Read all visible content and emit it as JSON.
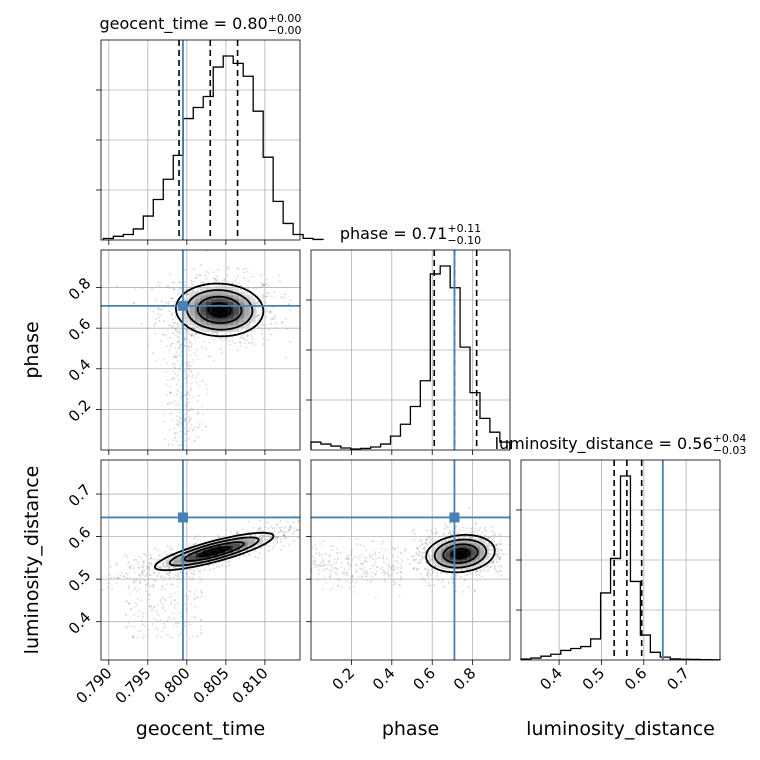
{
  "chart_data": {
    "type": "corner",
    "parameters": [
      {
        "name": "geocent_time",
        "axis_label": "geocent_time",
        "range": [
          0.789,
          0.8145
        ],
        "ticks": [
          0.79,
          0.795,
          0.8,
          0.805,
          0.81
        ],
        "tick_labels": [
          "0.790",
          "0.795",
          "0.800",
          "0.805",
          "0.810"
        ],
        "truth": 0.7995,
        "quantiles": [
          0.799,
          0.803,
          0.8065
        ],
        "title": {
          "main": "geocent_time = 0.80",
          "sup": "+0.00",
          "sub": "−0.00"
        },
        "histogram": {
          "edges_start": 0.7893,
          "bin_width": 0.00128,
          "counts": [
            0.008,
            0.02,
            0.03,
            0.06,
            0.13,
            0.22,
            0.33,
            0.46,
            0.66,
            0.72,
            0.78,
            0.94,
            1.0,
            0.96,
            0.89,
            0.7,
            0.45,
            0.21,
            0.09,
            0.03,
            0.009,
            0.003
          ]
        }
      },
      {
        "name": "phase",
        "axis_label": "phase",
        "range": [
          0.0,
          0.985
        ],
        "ticks": [
          0.2,
          0.4,
          0.6,
          0.8
        ],
        "tick_labels": [
          "0.2",
          "0.4",
          "0.6",
          "0.8"
        ],
        "truth": 0.71,
        "quantiles": [
          0.61,
          0.71,
          0.82
        ],
        "title": {
          "main": "phase = 0.71",
          "sup": "+0.11",
          "sub": "−0.10"
        },
        "histogram": {
          "edges_start": 0.0,
          "bin_width": 0.0492,
          "counts": [
            0.04,
            0.03,
            0.02,
            0.01,
            0.005,
            0.008,
            0.015,
            0.03,
            0.07,
            0.13,
            0.22,
            0.35,
            0.89,
            0.93,
            0.82,
            0.52,
            0.29,
            0.16,
            0.09,
            0.04
          ]
        }
      },
      {
        "name": "luminosity_distance",
        "axis_label": "luminosity_distance",
        "range": [
          0.31,
          0.78
        ],
        "ticks": [
          0.4,
          0.5,
          0.6,
          0.7
        ],
        "tick_labels": [
          "0.4",
          "0.5",
          "0.6",
          "0.7"
        ],
        "truth": 0.645,
        "quantiles": [
          0.53,
          0.56,
          0.595
        ],
        "title": {
          "main": "luminosity_distance = 0.56",
          "sup": "+0.04",
          "sub": "−0.03"
        },
        "histogram": {
          "edges_start": 0.31,
          "bin_width": 0.0235,
          "counts": [
            0.005,
            0.01,
            0.02,
            0.03,
            0.05,
            0.06,
            0.07,
            0.11,
            0.35,
            0.53,
            0.96,
            0.41,
            0.13,
            0.04,
            0.015,
            0.006,
            0.004,
            0.003,
            0.002,
            0.001
          ]
        }
      }
    ],
    "pairs": [
      {
        "x_param": "geocent_time",
        "y_param": "phase",
        "center": [
          0.8042,
          0.69
        ],
        "sigma": [
          0.0028,
          0.065
        ],
        "rho": -0.05,
        "tail": "vertical-scatter-near-truth"
      },
      {
        "x_param": "geocent_time",
        "y_param": "luminosity_distance",
        "center": [
          0.8035,
          0.565
        ],
        "sigma": [
          0.0038,
          0.022
        ],
        "rho": 0.82,
        "tail": "low-left-scatter"
      },
      {
        "x_param": "phase",
        "y_param": "luminosity_distance",
        "center": [
          0.74,
          0.56
        ],
        "sigma": [
          0.085,
          0.022
        ],
        "rho": 0.15,
        "tail": "low-phase-scatter"
      }
    ],
    "contour_levels_sigma": [
      0.5,
      1.0,
      1.5,
      2.0
    ],
    "grid": true
  }
}
